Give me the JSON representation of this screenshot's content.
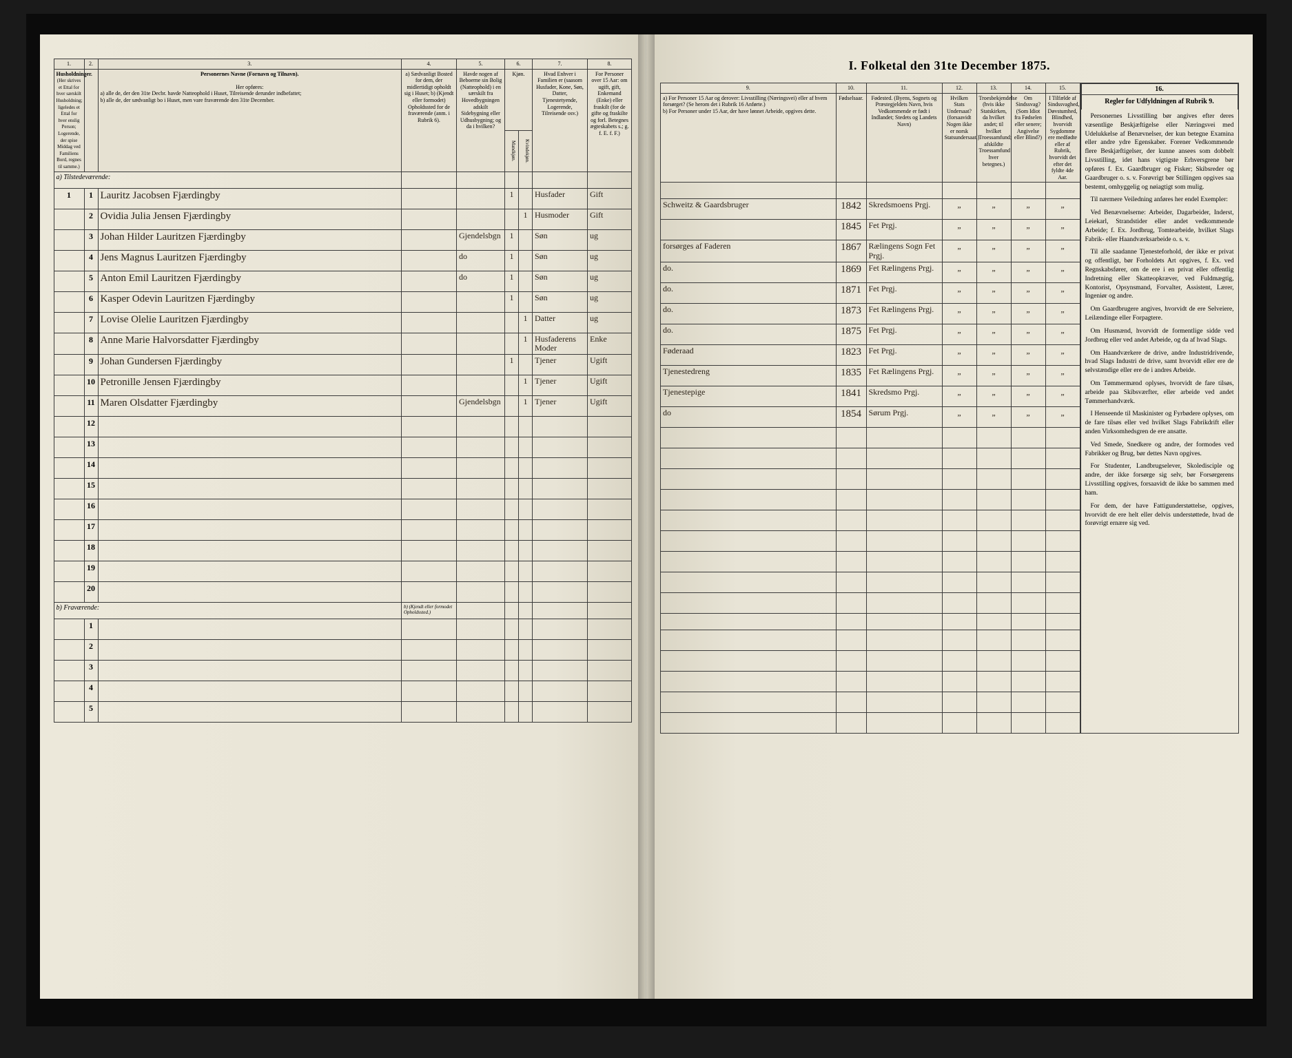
{
  "doc": {
    "title": "I.  Folketal den 31te December 1875.",
    "bg": "#e8e4d6",
    "ink": "#2b2218",
    "rule_color": "#3a3a3a"
  },
  "columns": {
    "nums": [
      "1.",
      "2.",
      "3.",
      "4.",
      "5.",
      "6.",
      "7.",
      "8.",
      "9.",
      "10.",
      "11.",
      "12.",
      "13.",
      "14.",
      "15.",
      "16."
    ],
    "h1": "Husholdninger.",
    "h1_sub": "(Her skrives et Ettal for hver særskilt Husholdning; ligeledes et Ettal for hver enslig Person; Logerende, der spise Middag ved Familiens Bord, regnes til samme.)",
    "h3": "Personernes Navne (Fornavn og Tilnavn).",
    "h3_sub_a": "a) alle de, der den 31te Decbr. havde Natteophold i Huset, Tilreisende derunder indbefattet;",
    "h3_sub_b": "b) alle de, der sædvanligt bo i Huset, men vare fraværende den 31te December.",
    "h3_pre": "Her opføres:",
    "h4": "a) Sædvanligt Bosted for dem, der midlertidigt opholdt sig i Huset; b) (Kjendt eller formodet) Opholdssted for de fraværende (anm. i Rubrik 6).",
    "h5": "Havde nogen af Beboerne sin Bolig (Natteophold) i en særskilt fra Hovedbygningen adskilt Sidebygning eller Udhusbygning; og da i hvilken?",
    "h6": "Kjøn.",
    "h6a": "Mandkjøn.",
    "h6b": "Kvindekjøn.",
    "h7": "Hvad Enhver i Familien er (saasom Husfader, Kone, Søn, Datter, Tjenestetyende, Logerende, Tilreisende osv.)",
    "h8": "For Personer over 15 Aar: om ugift, gift, Enkemand (Enke) eller fraskilt (for de gifte og fraskilte og forl. Betegnes ægteskabets s.; g. f. E. f. F.)",
    "h9a": "a) For Personer 15 Aar og derover: Livsstilling (Næringsvei) eller af hvem forsørget? (Se herom det i Rubrik 16 Anførte.)",
    "h9b": "b) For Personer under 15 Aar, der have lønnet Arbeide, opgives dette.",
    "h10": "Fødselsaar.",
    "h11": "Fødested. (Byens, Sognets og Præstegjeldets Navn, hvis Vedkommende er født i Indlandet; Stedets og Landets Navn)",
    "h12": "Hvilken Stats Undersaat? (forsaavidt Nogen ikke er norsk Statsundersaat.)",
    "h13": "Troesbekjendelse (hvis ikke Statskirken, da hvilket andet; til hvilket Troessamfund; afskildte Troessamfund hver betegnes.)",
    "h14": "Om Sindssvag? (Som Idiot fra Fødselen eller senere; Angivelse eller Blind?)",
    "h15": "I Tilfælde af Sindssvaghed, Døvstumhed, Blindhed, hvorvidt Sygdomme ere medfødte eller af Rubrik, hvorvidt det efter det fyldte 4de Aar.",
    "h16": "Regler for Udfyldningen af Rubrik 9."
  },
  "sections": {
    "present": "a)  Tilstedeværende:",
    "absent": "b)  Fraværende:",
    "absent_note": "b) (Kjendt eller formodet Opholdssted.)"
  },
  "rows": [
    {
      "n": "1",
      "hh": "1",
      "name": "Lauritz Jacobsen Fjærdingby",
      "c4": "",
      "c5": "",
      "m": "1",
      "k": "",
      "rel": "Husfader",
      "civ": "Gift",
      "occ": "Schweitz & Gaardsbruger",
      "year": "1842",
      "birthplace": "Skredsmoens Prgj."
    },
    {
      "n": "2",
      "hh": "",
      "name": "Ovidia Julia Jensen Fjærdingby",
      "c4": "",
      "c5": "",
      "m": "",
      "k": "1",
      "rel": "Husmoder",
      "civ": "Gift",
      "occ": "",
      "year": "1845",
      "birthplace": "Fet Prgj."
    },
    {
      "n": "3",
      "hh": "",
      "name": "Johan Hilder Lauritzen Fjærdingby",
      "c4": "",
      "c5": "Gjendelsbgn",
      "m": "1",
      "k": "",
      "rel": "Søn",
      "civ": "ug",
      "occ": "forsørges af Faderen",
      "year": "1867",
      "birthplace": "Rælingens Sogn Fet Prgj."
    },
    {
      "n": "4",
      "hh": "",
      "name": "Jens Magnus Lauritzen Fjærdingby",
      "c4": "",
      "c5": "do",
      "m": "1",
      "k": "",
      "rel": "Søn",
      "civ": "ug",
      "occ": "do.",
      "year": "1869",
      "birthplace": "Fet Rælingens Prgj."
    },
    {
      "n": "5",
      "hh": "",
      "name": "Anton Emil Lauritzen Fjærdingby",
      "c4": "",
      "c5": "do",
      "m": "1",
      "k": "",
      "rel": "Søn",
      "civ": "ug",
      "occ": "do.",
      "year": "1871",
      "birthplace": "Fet Prgj."
    },
    {
      "n": "6",
      "hh": "",
      "name": "Kasper Odevin Lauritzen Fjærdingby",
      "c4": "",
      "c5": "",
      "m": "1",
      "k": "",
      "rel": "Søn",
      "civ": "ug",
      "occ": "do.",
      "year": "1873",
      "birthplace": "Fet Rælingens Prgj."
    },
    {
      "n": "7",
      "hh": "",
      "name": "Lovise Olelie Lauritzen Fjærdingby",
      "c4": "",
      "c5": "",
      "m": "",
      "k": "1",
      "rel": "Datter",
      "civ": "ug",
      "occ": "do.",
      "year": "1875",
      "birthplace": "Fet Prgj."
    },
    {
      "n": "8",
      "hh": "",
      "name": "Anne Marie Halvorsdatter Fjærdingby",
      "c4": "",
      "c5": "",
      "m": "",
      "k": "1",
      "rel": "Husfaderens Moder",
      "civ": "Enke",
      "occ": "Føderaad",
      "year": "1823",
      "birthplace": "Fet Prgj."
    },
    {
      "n": "9",
      "hh": "",
      "name": "Johan Gundersen Fjærdingby",
      "c4": "",
      "c5": "",
      "m": "1",
      "k": "",
      "rel": "Tjener",
      "civ": "Ugift",
      "occ": "Tjenestedreng",
      "year": "1835",
      "birthplace": "Fet Rælingens Prgj."
    },
    {
      "n": "10",
      "hh": "",
      "name": "Petronille Jensen Fjærdingby",
      "c4": "",
      "c5": "",
      "m": "",
      "k": "1",
      "rel": "Tjener",
      "civ": "Ugift",
      "occ": "Tjenestepige",
      "year": "1841",
      "birthplace": "Skredsmo Prgj."
    },
    {
      "n": "11",
      "hh": "",
      "name": "Maren Olsdatter Fjærdingby",
      "c4": "",
      "c5": "Gjendelsbgn",
      "m": "",
      "k": "1",
      "rel": "Tjener",
      "civ": "Ugift",
      "occ": "do",
      "year": "1854",
      "birthplace": "Sørum Prgj."
    }
  ],
  "blank_present": [
    "12",
    "13",
    "14",
    "15",
    "16",
    "17",
    "18",
    "19",
    "20"
  ],
  "blank_absent": [
    "1",
    "2",
    "3",
    "4",
    "5"
  ],
  "rules": [
    "Personernes Livsstilling bør angives efter deres væsentlige Beskjæftigelse eller Næringsvei med Udelukkelse af Benævnelser, der kun betegne Examina eller andre ydre Egenskaber. Forener Vedkommende flere Beskjæftigelser, der kunne ansees som dobbelt Livsstilling, idet hans vigtigste Erhversgrene bør opføres f. Ex. Gaardbruger og Fisker; Skibsreder og Gaardbruger o. s. v. Forøvrigt bør Stillingen opgives saa bestemt, omhyggelig og nøiagtigt som mulig.",
    "Til nærmere Veiledning anføres her endel Exempler:",
    "Ved Benævnelserne: Arbeider, Dagarbeider, Inderst, Leiekarl, Strandstider eller andet vedkommende Arbeide; f. Ex. Jordbrug, Tomtearbeide, hvilket Slags Fabrik- eller Haandværksarbeide o. s. v.",
    "Til alle saadanne Tjenesteforhold, der ikke er privat og offentligt, bør Forholdets Art opgives, f. Ex. ved Regnskabsfører, om de ere i en privat eller offentlig Indretning eller Skatteopkræver, ved Fuldmægtig, Kontorist, Opsynsmand, Forvalter, Assistent, Lærer, Ingeniør og andre.",
    "Om Gaardbrugere angives, hvorvidt de ere Selveiere, Leilændinge eller Forpagtere.",
    "Om Husmænd, hvorvidt de formentlige sidde ved Jordbrug eller ved andet Arbeide, og da af hvad Slags.",
    "Om Haandværkere de drive, andre Industridrivende, hvad Slags Industri de drive, samt hvorvidt eller ere de selvstændige eller ere de i andres Arbeide.",
    "Om Tømmermænd oplyses, hvorvidt de fare tilsøs, arbeide paa Skibsværfter, eller arbeide ved andet Tømmerhandværk.",
    "I Henseende til Maskinister og Fyrbødere oplyses, om de fare tilsøs eller ved hvilket Slags Fabrikdrift eller anden Virksomhedsgren de ere ansatte.",
    "Ved Smede, Snedkere og andre, der formodes ved Fabrikker og Brug, bør dettes Navn opgives.",
    "For Studenter, Landbrugselever, Skoledisciple og andre, der ikke forsørge sig selv, bør Forsørgerens Livsstilling opgives, forsaavidt de ikke bo sammen med ham.",
    "For dem, der have Fattigunderstøttelse, opgives, hvorvidt de ere helt eller delvis understøttede, hvad de forøvrigt ernære sig ved."
  ]
}
